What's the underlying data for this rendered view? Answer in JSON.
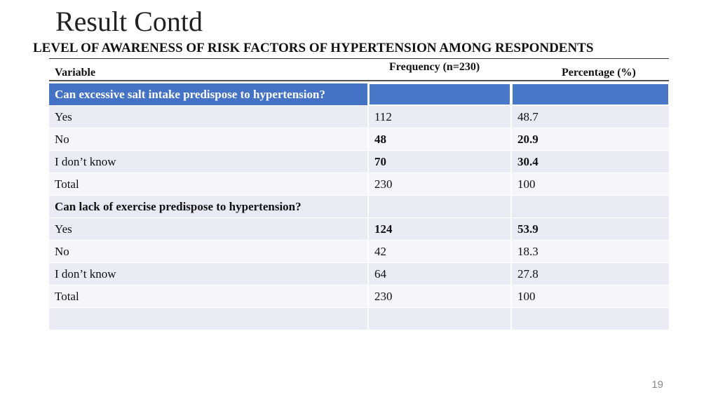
{
  "slide": {
    "title": "Result Contd",
    "subtitle": "LEVEL OF AWARENESS OF RISK FACTORS OF HYPERTENSION AMONG RESPONDENTS",
    "page_number": "19"
  },
  "table": {
    "headers": {
      "variable": "Variable",
      "frequency": "Frequency (n=230)",
      "percentage": "Percentage (%)"
    },
    "rows": [
      {
        "type": "section",
        "variable": "Can excessive salt intake predispose to hypertension?",
        "frequency": "",
        "percentage": ""
      },
      {
        "type": "data",
        "variable": "Yes",
        "frequency": "112",
        "percentage": "48.7",
        "bold": false
      },
      {
        "type": "data",
        "variable": "No",
        "frequency": "48",
        "percentage": "20.9",
        "bold": true
      },
      {
        "type": "data",
        "variable": "I don’t know",
        "frequency": "70",
        "percentage": "30.4",
        "bold": true
      },
      {
        "type": "data",
        "variable": "Total",
        "frequency": "230",
        "percentage": "100",
        "bold": false
      },
      {
        "type": "section",
        "variable": "Can lack of exercise predispose to hypertension?",
        "frequency": "",
        "percentage": ""
      },
      {
        "type": "data",
        "variable": "Yes",
        "frequency": "124",
        "percentage": "53.9",
        "bold": true
      },
      {
        "type": "data",
        "variable": "No",
        "frequency": "42",
        "percentage": "18.3",
        "bold": false
      },
      {
        "type": "data",
        "variable": "I don’t know",
        "frequency": "64",
        "percentage": "27.8",
        "bold": false
      },
      {
        "type": "data",
        "variable": "Total",
        "frequency": "230",
        "percentage": "100",
        "bold": false
      },
      {
        "type": "data",
        "variable": "",
        "frequency": "",
        "percentage": "",
        "bold": false
      }
    ]
  }
}
